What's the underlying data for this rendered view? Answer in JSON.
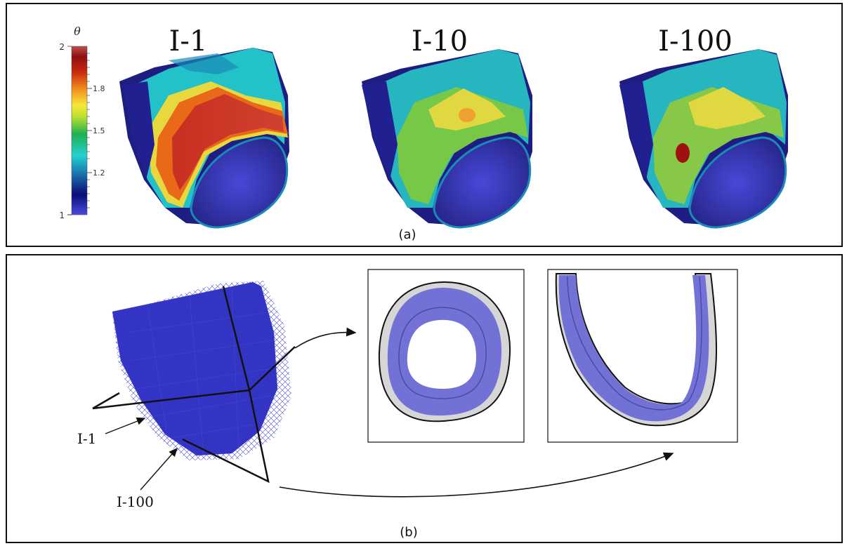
{
  "panel_a": {
    "caption": "(a)",
    "colorbar": {
      "symbol": "θ",
      "min_label": "1",
      "max_label": "2",
      "ticks": [
        "1.8",
        "1.5",
        "1.2"
      ],
      "colors": [
        "#3b3bd0",
        "#0a0a70",
        "#1fc8c8",
        "#1aa84a",
        "#f0e040",
        "#f08020",
        "#c02010",
        "#b84848"
      ]
    },
    "models": [
      {
        "label": "I-1"
      },
      {
        "label": "I-10"
      },
      {
        "label": "I-100"
      }
    ]
  },
  "panel_b": {
    "caption": "(b)",
    "labels": {
      "i1": "I-1",
      "i100": "I-100"
    },
    "colors": {
      "mesh": "#3a3ad0",
      "band": "#7070d8",
      "outline": "#111111",
      "gray": "#d8d8d8"
    }
  }
}
